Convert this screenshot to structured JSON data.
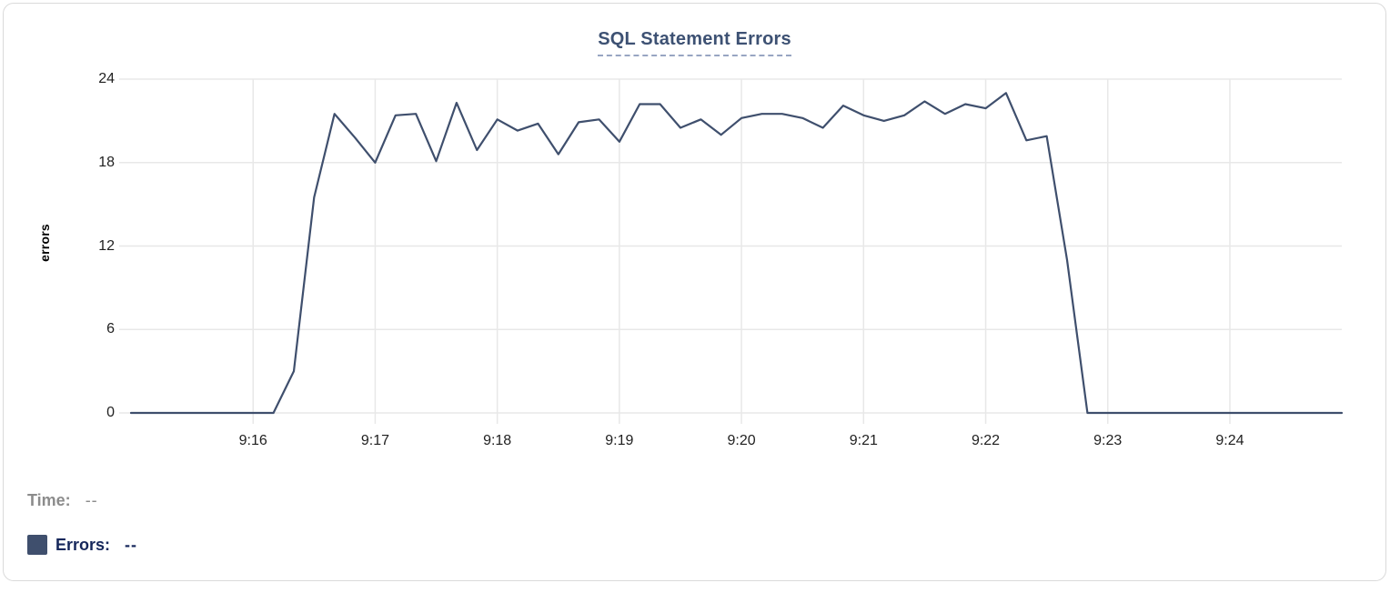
{
  "card": {
    "background": "#ffffff",
    "border_color": "#dadada"
  },
  "chart": {
    "title_color": "#3d5173",
    "title_underline_color": "#98a5c2",
    "grid_color": "#e8e8e8",
    "axis_text_color": "#1f1f1f",
    "line_color": "#3f4f6d"
  },
  "chart_data": {
    "type": "line",
    "title": "SQL Statement Errors",
    "xlabel": "",
    "ylabel": "errors",
    "ylim": [
      0,
      24
    ],
    "y_ticks": [
      0,
      6,
      12,
      18,
      24
    ],
    "x_ticks": [
      "9:16",
      "9:17",
      "9:18",
      "9:19",
      "9:20",
      "9:21",
      "9:22",
      "9:23",
      "9:24"
    ],
    "x_domain": [
      "9:15:00",
      "9:24:55"
    ],
    "grid": true,
    "legend_position": "bottom-left",
    "series": [
      {
        "name": "Errors",
        "color": "#3f4f6d",
        "points": [
          [
            "9:15:00",
            0
          ],
          [
            "9:15:10",
            0
          ],
          [
            "9:15:20",
            0
          ],
          [
            "9:15:30",
            0
          ],
          [
            "9:15:40",
            0
          ],
          [
            "9:15:50",
            0
          ],
          [
            "9:16:00",
            0
          ],
          [
            "9:16:10",
            0
          ],
          [
            "9:16:20",
            3
          ],
          [
            "9:16:30",
            15.5
          ],
          [
            "9:16:40",
            21.5
          ],
          [
            "9:16:50",
            19.8
          ],
          [
            "9:17:00",
            18
          ],
          [
            "9:17:10",
            21.4
          ],
          [
            "9:17:20",
            21.5
          ],
          [
            "9:17:30",
            18.1
          ],
          [
            "9:17:40",
            22.3
          ],
          [
            "9:17:50",
            18.9
          ],
          [
            "9:18:00",
            21.1
          ],
          [
            "9:18:10",
            20.3
          ],
          [
            "9:18:20",
            20.8
          ],
          [
            "9:18:30",
            18.6
          ],
          [
            "9:18:40",
            20.9
          ],
          [
            "9:18:50",
            21.1
          ],
          [
            "9:19:00",
            19.5
          ],
          [
            "9:19:10",
            22.2
          ],
          [
            "9:19:20",
            22.2
          ],
          [
            "9:19:30",
            20.5
          ],
          [
            "9:19:40",
            21.1
          ],
          [
            "9:19:50",
            20.0
          ],
          [
            "9:20:00",
            21.2
          ],
          [
            "9:20:10",
            21.5
          ],
          [
            "9:20:20",
            21.5
          ],
          [
            "9:20:30",
            21.2
          ],
          [
            "9:20:40",
            20.5
          ],
          [
            "9:20:50",
            22.1
          ],
          [
            "9:21:00",
            21.4
          ],
          [
            "9:21:10",
            21.0
          ],
          [
            "9:21:20",
            21.4
          ],
          [
            "9:21:30",
            22.4
          ],
          [
            "9:21:40",
            21.5
          ],
          [
            "9:21:50",
            22.2
          ],
          [
            "9:22:00",
            21.9
          ],
          [
            "9:22:10",
            23.0
          ],
          [
            "9:22:20",
            19.6
          ],
          [
            "9:22:30",
            19.9
          ],
          [
            "9:22:40",
            11
          ],
          [
            "9:22:50",
            0
          ],
          [
            "9:23:00",
            0
          ],
          [
            "9:23:10",
            0
          ],
          [
            "9:23:20",
            0
          ],
          [
            "9:23:30",
            0
          ],
          [
            "9:23:40",
            0
          ],
          [
            "9:23:50",
            0
          ],
          [
            "9:24:00",
            0
          ],
          [
            "9:24:10",
            0
          ],
          [
            "9:24:20",
            0
          ],
          [
            "9:24:30",
            0
          ],
          [
            "9:24:40",
            0
          ],
          [
            "9:24:50",
            0
          ],
          [
            "9:24:55",
            0
          ]
        ]
      }
    ]
  },
  "legend": {
    "time_label": "Time:",
    "time_value": "--",
    "errors_label": "Errors:",
    "errors_value": "--",
    "swatch_color": "#3f4f6d"
  }
}
